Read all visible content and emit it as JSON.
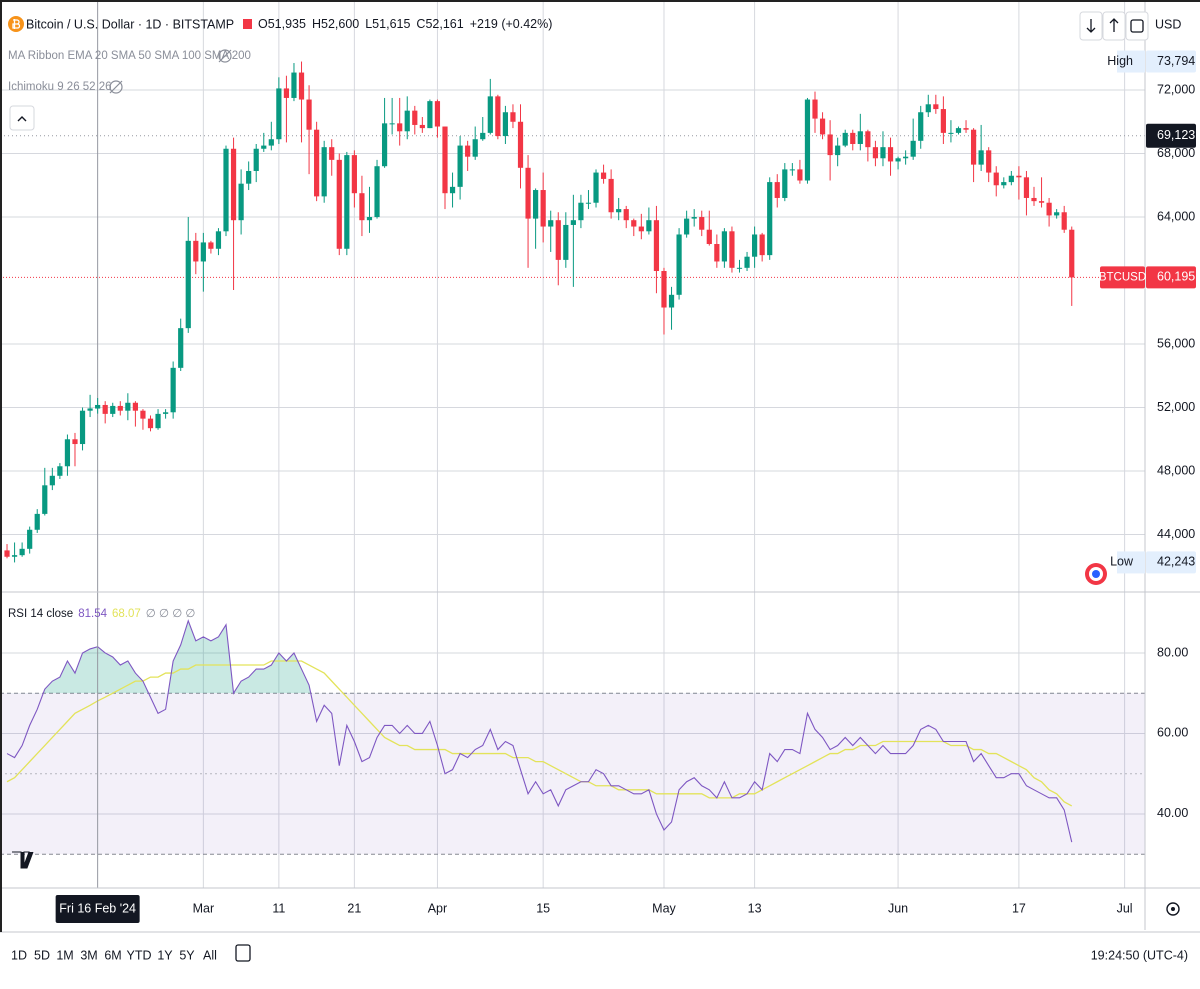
{
  "chart_data": [
    {
      "type": "candlestick",
      "title": "Bitcoin / U.S. Dollar · 1D · BITSTAMP",
      "ohlc_labels": [
        "O51,935",
        "H52,600",
        "L51,615",
        "C52,161",
        "+219 (+0.42%)"
      ],
      "indicators": [
        "MA Ribbon EMA 20 SMA 50 SMA 100 SMA 200",
        "Ichimoku 9 26 52 26"
      ],
      "currency": "USD",
      "up_color": "#089981",
      "down_color": "#f23645",
      "open": [
        43000,
        42600,
        42700,
        43100,
        44300,
        45300,
        47100,
        47700,
        48300,
        50000,
        49700,
        51800,
        51935,
        52161,
        51600,
        52100,
        51800,
        52300,
        51800,
        51300,
        50700,
        51600,
        51700,
        54500,
        57000,
        62500,
        61200,
        62400,
        62000,
        63100,
        68300,
        63800,
        66100,
        66900,
        68300,
        68500,
        68900,
        72100,
        71500,
        73100,
        71400,
        69500,
        65300,
        68400,
        67600,
        62000,
        67900,
        65500,
        63800,
        64000,
        67200,
        69900,
        69900,
        69400,
        70700,
        69800,
        69600,
        71300,
        69700,
        65500,
        65900,
        68500,
        67800,
        68900,
        69300,
        71600,
        69100,
        70600,
        70000,
        67100,
        63900,
        65700,
        63400,
        63800,
        61300,
        63500,
        63800,
        64900,
        64900,
        66800,
        66400,
        64300,
        64500,
        63800,
        63400,
        63100,
        63800,
        60600,
        58300,
        59100,
        62900,
        63900,
        64000,
        63200,
        62300,
        61200,
        63100,
        60800,
        60800,
        61500,
        62900,
        61600,
        66200,
        65200,
        67000,
        67000,
        66300,
        71400,
        70200,
        69200,
        67900,
        68500,
        69300,
        68600,
        69400,
        68400,
        67700,
        68400,
        67500,
        67700,
        67800,
        68800,
        70600,
        71100,
        70800,
        69300,
        69300,
        69600,
        69500,
        67300,
        68200,
        66800,
        66000,
        66200,
        66600,
        66500,
        65200,
        65000,
        64900,
        64100,
        64300,
        63200
      ],
      "high": [
        43400,
        43500,
        43500,
        44500,
        45600,
        48200,
        48200,
        48500,
        50300,
        50400,
        52000,
        52800,
        52600,
        52400,
        52300,
        52400,
        52900,
        52400,
        51900,
        51500,
        51900,
        51900,
        54900,
        57600,
        64000,
        63000,
        63000,
        62500,
        63300,
        68500,
        69000,
        67000,
        67500,
        68600,
        69300,
        70000,
        72800,
        72900,
        73700,
        73794,
        72300,
        70000,
        68800,
        68900,
        68000,
        68100,
        68200,
        66600,
        65900,
        67600,
        71500,
        71500,
        71500,
        71600,
        71000,
        70300,
        71400,
        71400,
        69700,
        66800,
        69100,
        68800,
        69700,
        70300,
        72700,
        71700,
        71000,
        71100,
        71100,
        67900,
        65800,
        66800,
        64400,
        64300,
        64300,
        65400,
        65400,
        65700,
        67000,
        67300,
        67000,
        65200,
        64700,
        63900,
        64200,
        64600,
        64700,
        60800,
        59600,
        63300,
        64400,
        64500,
        64400,
        64400,
        62900,
        63300,
        63400,
        61300,
        61800,
        63400,
        63000,
        66500,
        66700,
        67400,
        67400,
        67600,
        71500,
        71900,
        70600,
        70100,
        69000,
        69500,
        69500,
        70500,
        69500,
        68800,
        69400,
        69000,
        67800,
        68200,
        70200,
        71000,
        71700,
        71700,
        71600,
        70100,
        69700,
        70100,
        69600,
        69800,
        68400,
        67200,
        66500,
        66900,
        67200,
        66900,
        65900,
        66500,
        65200,
        64500,
        64700,
        63400
      ],
      "low": [
        42500,
        42243,
        42600,
        42800,
        44100,
        45200,
        46800,
        47500,
        47700,
        48300,
        49300,
        51400,
        51615,
        51000,
        51400,
        51500,
        51200,
        50800,
        50600,
        50500,
        50600,
        51300,
        51300,
        54300,
        56700,
        60400,
        59300,
        61700,
        61600,
        62800,
        59400,
        62900,
        65700,
        66200,
        68100,
        68200,
        68600,
        68700,
        71300,
        68700,
        66700,
        65000,
        64900,
        66600,
        61600,
        61600,
        64600,
        62800,
        63000,
        63900,
        67100,
        69200,
        68500,
        68900,
        69200,
        69300,
        69600,
        69000,
        64500,
        64600,
        65100,
        66900,
        67600,
        68800,
        69200,
        68900,
        68600,
        69600,
        65800,
        60800,
        62000,
        62400,
        61800,
        59700,
        60800,
        59600,
        63300,
        64500,
        64600,
        66100,
        63900,
        63800,
        63300,
        62800,
        62600,
        62900,
        59200,
        56600,
        56900,
        58800,
        62700,
        63400,
        62800,
        62200,
        60800,
        60800,
        60500,
        60500,
        60600,
        60800,
        61200,
        61300,
        64600,
        65000,
        66600,
        66100,
        66100,
        69300,
        68900,
        66300,
        67200,
        68400,
        68200,
        68200,
        67500,
        67200,
        67200,
        66600,
        67000,
        67300,
        67600,
        68300,
        70300,
        70500,
        68600,
        68700,
        69200,
        69300,
        66200,
        66900,
        66200,
        65300,
        65800,
        66000,
        65100,
        64100,
        64700,
        64600,
        63400,
        63900,
        63000,
        58400
      ],
      "close": [
        42600,
        42700,
        43100,
        44300,
        45300,
        47100,
        47700,
        48300,
        50000,
        49700,
        51800,
        51942,
        52161,
        51600,
        52100,
        51800,
        52300,
        51800,
        51300,
        50700,
        51600,
        51700,
        54500,
        57000,
        62500,
        61200,
        62400,
        62000,
        63100,
        68300,
        63800,
        66100,
        66900,
        68300,
        68500,
        68900,
        72100,
        71500,
        73100,
        71400,
        69500,
        65300,
        68400,
        67600,
        62000,
        67900,
        65500,
        63800,
        64000,
        67200,
        69900,
        69900,
        69400,
        70700,
        69800,
        69600,
        71300,
        69700,
        65500,
        65900,
        68500,
        67800,
        68900,
        69300,
        71600,
        69100,
        70600,
        70000,
        67100,
        63900,
        65700,
        63400,
        63800,
        61300,
        63500,
        63800,
        64900,
        64900,
        66800,
        66400,
        64300,
        64500,
        63800,
        63400,
        63100,
        63800,
        60600,
        58300,
        59100,
        62900,
        63900,
        64000,
        63200,
        62300,
        61200,
        63100,
        60800,
        60800,
        61500,
        62900,
        61600,
        66200,
        65200,
        67000,
        67000,
        66300,
        71400,
        70200,
        69200,
        67900,
        68500,
        69300,
        68600,
        69400,
        68400,
        67700,
        68400,
        67500,
        67700,
        67800,
        68800,
        70600,
        71100,
        70800,
        69300,
        69300,
        69600,
        69500,
        67300,
        68200,
        66800,
        66000,
        66200,
        66600,
        66500,
        65200,
        65000,
        64900,
        64100,
        64300,
        63200,
        60195
      ],
      "xlim": [
        -0.93,
        150.7
      ],
      "xticks": [
        {
          "value": 26,
          "label": "Mar"
        },
        {
          "value": 36,
          "label": "11"
        },
        {
          "value": 46,
          "label": "21"
        },
        {
          "value": 57,
          "label": "Apr"
        },
        {
          "value": 71,
          "label": "15"
        },
        {
          "value": 87,
          "label": "May"
        },
        {
          "value": 99,
          "label": "13"
        },
        {
          "value": 118,
          "label": "Jun"
        },
        {
          "value": 134,
          "label": "17"
        },
        {
          "value": 148,
          "label": "Jul"
        }
      ],
      "ylim": [
        40380,
        77670
      ],
      "yticks": [
        {
          "value": 44000,
          "label": "44,000"
        },
        {
          "value": 48000,
          "label": "48,000"
        },
        {
          "value": 52000,
          "label": "52,000"
        },
        {
          "value": 56000,
          "label": "56,000"
        },
        {
          "value": 64000,
          "label": "64,000"
        },
        {
          "value": 68000,
          "label": "68,000"
        },
        {
          "value": 72000,
          "label": "72,000"
        }
      ],
      "grid": true,
      "high_marker": {
        "label": "High",
        "value": 73794,
        "value_label": "73,794"
      },
      "low_marker": {
        "label": "Low",
        "value": 42243,
        "value_label": "42,243"
      },
      "last_price": {
        "label": "BTCUSD",
        "value": 60195,
        "value_label": "60,195",
        "color": "#f23645"
      },
      "crosshair": {
        "x": 12,
        "x_label": "Fri 16 Feb '24",
        "y": 69123,
        "y_label": "69,123"
      }
    },
    {
      "type": "line",
      "title": "RSI 14 close",
      "legend_values": [
        "81.54",
        "68.07"
      ],
      "legend_extra": "∅ ∅ ∅ ∅",
      "series": [
        {
          "color": "#7e57c2",
          "values": [
            55,
            54,
            57,
            62,
            66,
            71,
            73,
            74,
            78,
            75,
            80,
            81,
            81.54,
            80,
            79,
            77,
            78,
            75,
            73,
            69,
            65,
            66,
            78,
            82,
            88,
            83,
            84,
            83,
            84,
            87,
            70,
            73,
            74,
            76,
            76,
            77,
            80,
            78,
            80,
            76,
            72,
            63,
            67,
            65,
            52,
            62,
            58,
            53,
            54,
            59,
            62,
            62,
            60,
            62,
            60,
            60,
            63,
            57,
            50,
            51,
            55,
            54,
            56,
            57,
            61,
            56,
            58,
            57,
            51,
            45,
            48,
            45,
            46,
            42,
            46,
            47,
            48,
            48,
            51,
            50,
            47,
            47,
            46,
            45,
            45,
            46,
            40,
            36,
            38,
            46,
            48,
            49,
            47,
            46,
            44,
            48,
            44,
            44,
            45,
            48,
            46,
            55,
            53,
            56,
            56,
            55,
            65,
            61,
            59,
            56,
            57,
            59,
            57,
            59,
            57,
            55,
            57,
            55,
            55,
            55,
            57,
            61,
            62,
            61,
            58,
            58,
            58,
            58,
            53,
            55,
            52,
            49,
            49,
            50,
            50,
            47,
            46,
            45,
            44,
            44,
            41,
            33
          ]
        },
        {
          "color": "#e3e35a",
          "values": [
            48,
            49,
            51,
            53,
            55,
            57,
            59,
            61,
            63,
            65,
            66,
            67,
            68.07,
            69,
            70,
            71,
            72,
            73,
            73,
            74,
            74,
            75,
            75,
            76,
            76,
            77,
            77,
            77,
            77,
            77,
            77,
            77,
            77,
            77,
            77,
            78,
            78,
            78,
            78,
            78,
            77,
            76,
            75,
            73,
            71,
            69,
            67,
            65,
            63,
            61,
            59,
            58,
            57,
            57,
            56,
            56,
            56,
            56,
            56,
            55,
            55,
            55,
            55,
            55,
            55,
            55,
            55,
            54,
            54,
            54,
            53,
            53,
            52,
            51,
            50,
            49,
            48,
            48,
            47,
            47,
            47,
            46,
            46,
            46,
            46,
            46,
            45,
            45,
            45,
            45,
            45,
            45,
            45,
            44,
            44,
            44,
            44,
            45,
            45,
            45,
            46,
            47,
            48,
            49,
            50,
            51,
            52,
            53,
            54,
            55,
            55,
            56,
            56,
            57,
            57,
            57,
            58,
            58,
            58,
            58,
            58,
            58,
            58,
            58,
            58,
            57,
            57,
            57,
            56,
            56,
            55,
            55,
            54,
            53,
            52,
            51,
            49,
            48,
            46,
            45,
            43,
            42
          ]
        }
      ],
      "ylim": [
        21.6,
        94.4
      ],
      "yticks": [
        {
          "value": 40,
          "label": "40.00"
        },
        {
          "value": 60,
          "label": "60.00"
        },
        {
          "value": 80,
          "label": "80.00"
        }
      ],
      "bands": {
        "upper": 70,
        "middle": 50,
        "lower": 30,
        "color": "#7e57c2",
        "overbought_color": "#089981"
      }
    }
  ],
  "toolbar": {
    "periods": [
      "1D",
      "5D",
      "1M",
      "3M",
      "6M",
      "YTD",
      "1Y",
      "5Y",
      "All"
    ],
    "clock": "19:24:50 (UTC-4)"
  }
}
